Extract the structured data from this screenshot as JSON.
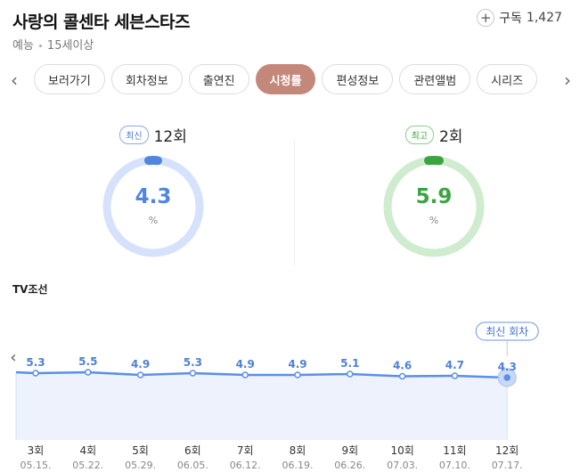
{
  "header": {
    "title": "사랑의 콜센타 세븐스타즈",
    "genre": "예능",
    "rating": "15세이상",
    "subscribe_label": "구독",
    "subscribe_count": "1,427"
  },
  "tabs": [
    {
      "label": "보러가기"
    },
    {
      "label": "회차정보"
    },
    {
      "label": "출연진"
    },
    {
      "label": "시청률",
      "active": true
    },
    {
      "label": "편성정보"
    },
    {
      "label": "관련앨범"
    },
    {
      "label": "시리즈"
    }
  ],
  "stats": {
    "latest": {
      "badge": "최신",
      "episode": "12회",
      "value": "4.3",
      "unit": "%",
      "color": "#4f86e3",
      "track_color": "#d6e2fb"
    },
    "best": {
      "badge": "최고",
      "episode": "2회",
      "value": "5.9",
      "unit": "%",
      "color": "#3aa441",
      "track_color": "#cfeccf"
    }
  },
  "chart_data": {
    "type": "area",
    "title": "TV조선",
    "categories": [
      "3회",
      "4회",
      "5회",
      "6회",
      "7회",
      "8회",
      "9회",
      "10회",
      "11회",
      "12회"
    ],
    "dates": [
      "05.15.",
      "05.22.",
      "05.29.",
      "06.05.",
      "06.12.",
      "06.19.",
      "06.26.",
      "07.03.",
      "07.10.",
      "07.17."
    ],
    "values": [
      5.3,
      5.5,
      4.9,
      5.3,
      4.9,
      4.9,
      5.1,
      4.6,
      4.7,
      4.3
    ],
    "annotation": "최신 회차",
    "line_color": "#5b8fe8",
    "fill_color": "#edf2fd"
  }
}
